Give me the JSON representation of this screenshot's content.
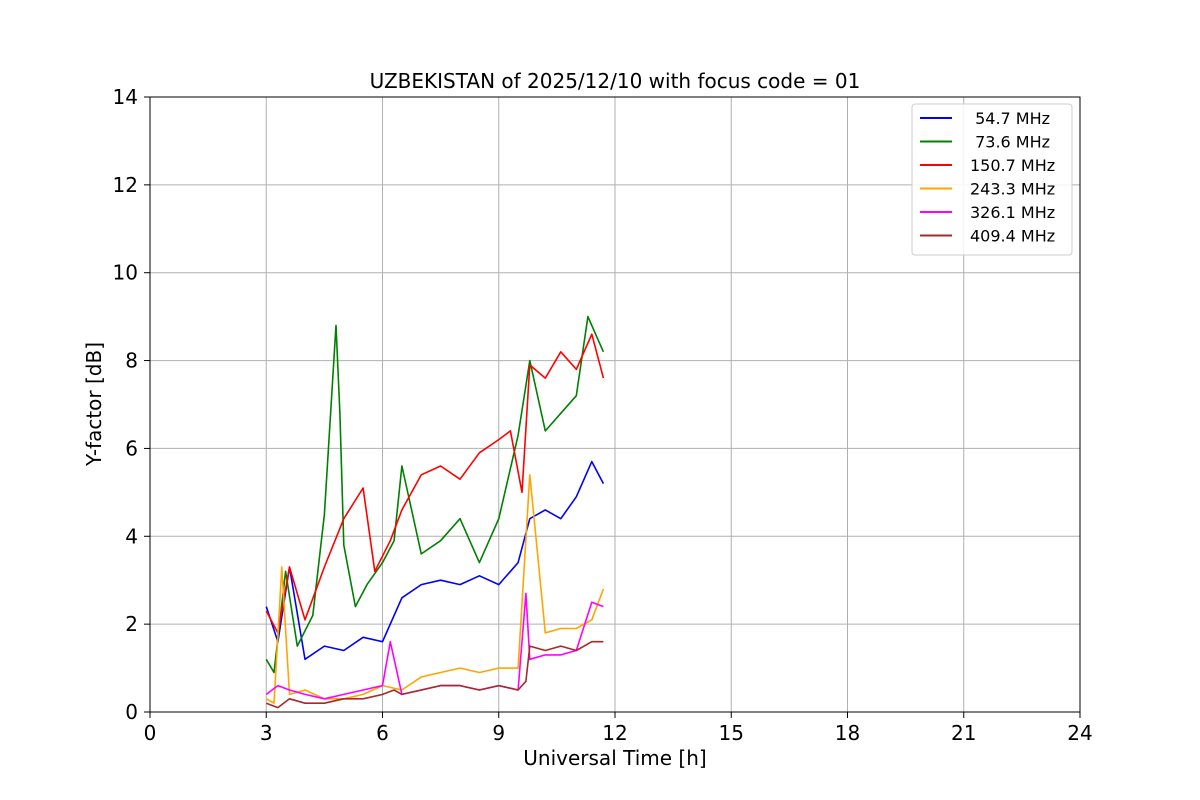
{
  "chart_data": {
    "type": "line",
    "title": "UZBEKISTAN of 2025/12/10 with focus code = 01",
    "xlabel": "Universal Time [h]",
    "ylabel": "Y-factor [dB]",
    "xlim": [
      0,
      24
    ],
    "ylim": [
      0,
      14
    ],
    "xticks": [
      0,
      3,
      6,
      9,
      12,
      15,
      18,
      21,
      24
    ],
    "yticks": [
      0,
      2,
      4,
      6,
      8,
      10,
      12,
      14
    ],
    "grid": true,
    "legend_position": "top-right",
    "series": [
      {
        "name": " 54.7 MHz",
        "color": "#0000ff",
        "x": [
          3.0,
          3.3,
          3.6,
          4.0,
          4.5,
          5.0,
          5.5,
          6.0,
          6.5,
          7.0,
          7.5,
          8.0,
          8.5,
          9.0,
          9.5,
          9.8,
          10.2,
          10.6,
          11.0,
          11.4,
          11.7
        ],
        "y": [
          2.4,
          1.6,
          3.3,
          1.2,
          1.5,
          1.4,
          1.7,
          1.6,
          2.6,
          2.9,
          3.0,
          2.9,
          3.1,
          2.9,
          3.4,
          4.4,
          4.6,
          4.4,
          4.9,
          5.7,
          5.2
        ]
      },
      {
        "name": " 73.6 MHz",
        "color": "#008000",
        "x": [
          3.0,
          3.2,
          3.5,
          3.8,
          4.2,
          4.5,
          4.8,
          4.9,
          5.0,
          5.3,
          5.6,
          6.0,
          6.3,
          6.5,
          7.0,
          7.5,
          8.0,
          8.5,
          9.0,
          9.5,
          9.8,
          10.2,
          10.6,
          11.0,
          11.3,
          11.5,
          11.7
        ],
        "y": [
          1.2,
          0.9,
          3.2,
          1.5,
          2.2,
          4.5,
          8.8,
          6.8,
          3.8,
          2.4,
          2.9,
          3.4,
          3.9,
          5.6,
          3.6,
          3.9,
          4.4,
          3.4,
          4.4,
          6.3,
          8.0,
          6.4,
          6.8,
          7.2,
          9.0,
          8.6,
          8.2
        ]
      },
      {
        "name": "150.7 MHz",
        "color": "#ff0000",
        "x": [
          3.0,
          3.3,
          3.6,
          4.0,
          4.5,
          5.0,
          5.5,
          5.8,
          6.2,
          6.5,
          7.0,
          7.5,
          8.0,
          8.5,
          9.0,
          9.3,
          9.6,
          9.8,
          10.2,
          10.6,
          11.0,
          11.4,
          11.7
        ],
        "y": [
          2.3,
          1.8,
          3.3,
          2.1,
          3.3,
          4.4,
          5.1,
          3.2,
          3.9,
          4.6,
          5.4,
          5.6,
          5.3,
          5.9,
          6.2,
          6.4,
          5.0,
          7.9,
          7.6,
          8.2,
          7.8,
          8.6,
          7.6
        ]
      },
      {
        "name": "243.3 MHz",
        "color": "#ffa500",
        "x": [
          3.0,
          3.2,
          3.4,
          3.6,
          4.0,
          4.5,
          5.0,
          5.5,
          6.0,
          6.5,
          7.0,
          7.5,
          8.0,
          8.5,
          9.0,
          9.5,
          9.8,
          10.2,
          10.6,
          11.0,
          11.4,
          11.7
        ],
        "y": [
          0.3,
          0.2,
          3.3,
          0.4,
          0.5,
          0.3,
          0.3,
          0.4,
          0.6,
          0.5,
          0.8,
          0.9,
          1.0,
          0.9,
          1.0,
          1.0,
          5.4,
          1.8,
          1.9,
          1.9,
          2.1,
          2.8
        ]
      },
      {
        "name": "326.1 MHz",
        "color": "#ff00ff",
        "x": [
          3.0,
          3.3,
          3.6,
          4.0,
          4.5,
          5.0,
          5.5,
          6.0,
          6.2,
          6.5,
          7.0,
          7.5,
          8.0,
          8.5,
          9.0,
          9.5,
          9.7,
          9.8,
          10.2,
          10.6,
          11.0,
          11.4,
          11.7
        ],
        "y": [
          0.4,
          0.6,
          0.5,
          0.4,
          0.3,
          0.4,
          0.5,
          0.6,
          1.6,
          0.4,
          0.5,
          0.6,
          0.6,
          0.5,
          0.6,
          0.5,
          2.7,
          1.2,
          1.3,
          1.3,
          1.4,
          2.5,
          2.4
        ]
      },
      {
        "name": "409.4 MHz",
        "color": "#a52a2a",
        "x": [
          3.0,
          3.3,
          3.6,
          4.0,
          4.5,
          5.0,
          5.5,
          6.0,
          6.3,
          6.5,
          7.0,
          7.5,
          8.0,
          8.5,
          9.0,
          9.5,
          9.7,
          9.8,
          10.2,
          10.6,
          11.0,
          11.4,
          11.7
        ],
        "y": [
          0.2,
          0.1,
          0.3,
          0.2,
          0.2,
          0.3,
          0.3,
          0.4,
          0.5,
          0.4,
          0.5,
          0.6,
          0.6,
          0.5,
          0.6,
          0.5,
          0.7,
          1.5,
          1.4,
          1.5,
          1.4,
          1.6,
          1.6
        ]
      }
    ]
  }
}
